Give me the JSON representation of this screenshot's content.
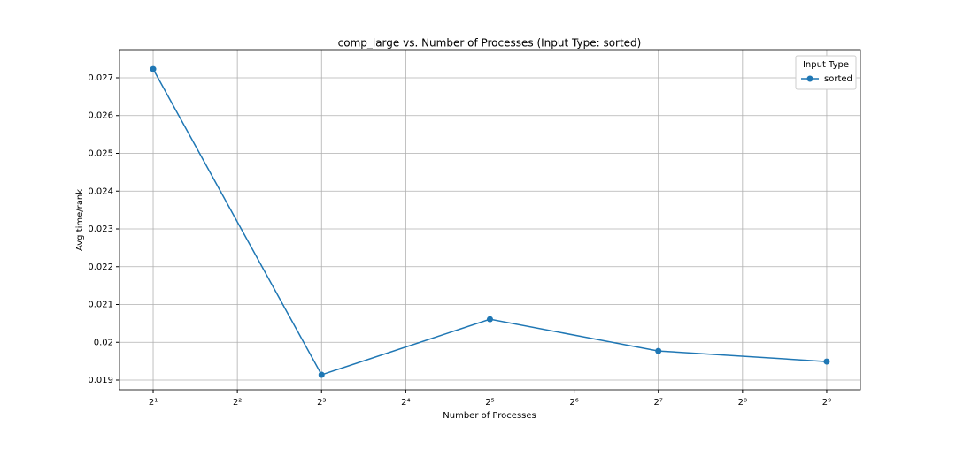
{
  "chart_data": {
    "type": "line",
    "title": "comp_large vs. Number of Processes (Input Type: sorted)",
    "xlabel": "Number of Processes",
    "ylabel": "Avg time/rank",
    "x": [
      2,
      8,
      32,
      128,
      512
    ],
    "series": [
      {
        "name": "sorted",
        "color": "#1f77b4",
        "values": [
          0.02723,
          0.01914,
          0.02061,
          0.01977,
          0.01949
        ]
      }
    ],
    "xscale": "log2",
    "xlim": [
      1.516,
      675.6
    ],
    "xticks": [
      {
        "value": 2,
        "label": "2¹"
      },
      {
        "value": 4,
        "label": "2²"
      },
      {
        "value": 8,
        "label": "2³"
      },
      {
        "value": 16,
        "label": "2⁴"
      },
      {
        "value": 32,
        "label": "2⁵"
      },
      {
        "value": 64,
        "label": "2⁶"
      },
      {
        "value": 128,
        "label": "2⁷"
      },
      {
        "value": 256,
        "label": "2⁸"
      },
      {
        "value": 512,
        "label": "2⁹"
      }
    ],
    "ylim": [
      0.018743,
      0.027725
    ],
    "yticks": [
      0.019,
      0.02,
      0.021,
      0.022,
      0.023,
      0.024,
      0.025,
      0.026,
      0.027
    ],
    "grid": true,
    "legend_title": "Input Type",
    "legend_loc": "upper right"
  }
}
